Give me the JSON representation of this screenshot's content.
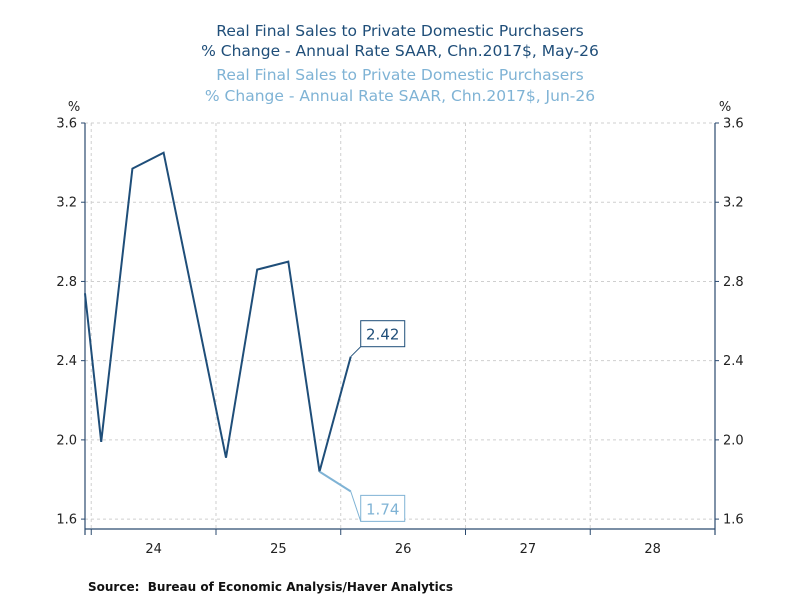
{
  "chart_data": {
    "type": "line",
    "title_lines": [
      {
        "text": "Real Final Sales to Private Domestic Purchasers",
        "series": 0
      },
      {
        "text": "% Change - Annual Rate    SAAR, Chn.2017$, May-26",
        "series": 0
      },
      {
        "text": "Real Final Sales to Private Domestic Purchasers",
        "series": 1
      },
      {
        "text": "% Change - Annual Rate    SAAR, Chn.2017$, Jun-26",
        "series": 1
      }
    ],
    "y_unit_left": "%",
    "y_unit_right": "%",
    "ylim": [
      1.55,
      3.6
    ],
    "y_ticks": [
      1.6,
      2.0,
      2.4,
      2.8,
      3.2,
      3.6
    ],
    "y_tick_labels": [
      "1.6",
      "2.0",
      "2.4",
      "2.8",
      "3.2",
      "3.6"
    ],
    "xlim": [
      2023.45,
      2028.5
    ],
    "x_ticks": [
      2024,
      2025,
      2026,
      2027,
      2028
    ],
    "x_tick_labels": [
      "24",
      "25",
      "26",
      "27",
      "28"
    ],
    "grid": true,
    "series": [
      {
        "color": "#1f4e79",
        "x": [
          2023.45,
          2023.58,
          2023.83,
          2024.08,
          2024.33,
          2024.58,
          2024.83,
          2025.08,
          2025.33,
          2025.58
        ],
        "values": [
          2.74,
          1.99,
          3.37,
          3.45,
          2.68,
          1.91,
          2.86,
          2.9,
          1.84,
          2.42
        ],
        "last_label": "2.42"
      },
      {
        "color": "#7fb3d5",
        "x": [
          2025.33,
          2025.58
        ],
        "values": [
          1.84,
          1.74
        ],
        "last_label": "1.74"
      }
    ]
  },
  "source": "Source:  Bureau of Economic Analysis/Haver Analytics"
}
